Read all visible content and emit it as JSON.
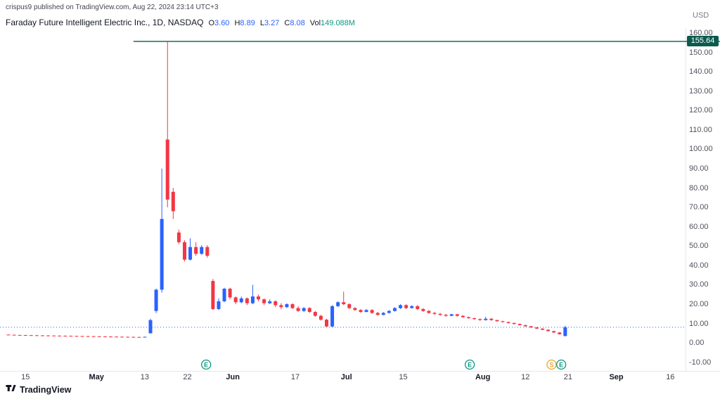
{
  "attribution": "crispus9 published on TradingView.com, Aug 22, 2024 23:14 UTC+3",
  "legend": {
    "symbol_title": "Faraday Future Intelligent Electric Inc., 1D, NASDAQ",
    "fields": [
      {
        "label": "O",
        "value": "3.60",
        "color": "#2962ff"
      },
      {
        "label": "H",
        "value": "8.89",
        "color": "#2962ff"
      },
      {
        "label": "L",
        "value": "3.27",
        "color": "#2962ff"
      },
      {
        "label": "C",
        "value": "8.08",
        "color": "#2962ff"
      },
      {
        "label": "Vol",
        "value": "149.088M",
        "color": "#089981"
      }
    ]
  },
  "price_axis": {
    "currency": "USD",
    "ticks": [
      160,
      150,
      140,
      130,
      120,
      110,
      100,
      90,
      80,
      70,
      60,
      50,
      40,
      30,
      20,
      10,
      0,
      -10
    ],
    "high_label": "155.64"
  },
  "time_axis": {
    "ticks": [
      {
        "label": "15",
        "i": 3,
        "major": false
      },
      {
        "label": "May",
        "i": 15.5,
        "major": true
      },
      {
        "label": "13",
        "i": 24,
        "major": false
      },
      {
        "label": "22",
        "i": 31.5,
        "major": false
      },
      {
        "label": "Jun",
        "i": 39.5,
        "major": true
      },
      {
        "label": "17",
        "i": 50.5,
        "major": false
      },
      {
        "label": "Jul",
        "i": 59.5,
        "major": true
      },
      {
        "label": "15",
        "i": 69.5,
        "major": false
      },
      {
        "label": "Aug",
        "i": 83.5,
        "major": true
      },
      {
        "label": "12",
        "i": 91,
        "major": false
      },
      {
        "label": "21",
        "i": 98.5,
        "major": false
      },
      {
        "label": "Sep",
        "i": 107,
        "major": true
      },
      {
        "label": "16",
        "i": 116.5,
        "major": false
      }
    ]
  },
  "watermark": "TradingView",
  "colors": {
    "up": "#2962ff",
    "down": "#f23645",
    "high_line": "#0b5a4e",
    "last_price_line": "#2962ff",
    "earnings": "#089981",
    "split": "#f0a42a",
    "axis_separator": "#e3e6ee"
  },
  "chart_data": {
    "type": "candlestick",
    "title": "Faraday Future Intelligent Electric Inc., 1D, NASDAQ",
    "ylabel": "USD",
    "ylim": [
      -10,
      160
    ],
    "grid": false,
    "hline": 155.64,
    "hline_start_index": 22,
    "last_price": 8.08,
    "candles_format": [
      "open",
      "high",
      "low",
      "close"
    ],
    "candles": [
      [
        4.3,
        4.4,
        4.1,
        4.2
      ],
      [
        4.2,
        4.3,
        4.0,
        4.1
      ],
      [
        4.1,
        4.25,
        3.95,
        4.05
      ],
      [
        4.05,
        4.2,
        3.9,
        4.0
      ],
      [
        4.0,
        4.15,
        3.85,
        3.95
      ],
      [
        3.95,
        4.1,
        3.8,
        3.9
      ],
      [
        3.9,
        4.05,
        3.75,
        3.85
      ],
      [
        3.85,
        4.0,
        3.7,
        3.8
      ],
      [
        3.8,
        3.95,
        3.65,
        3.75
      ],
      [
        3.75,
        3.9,
        3.6,
        3.7
      ],
      [
        3.7,
        3.85,
        3.55,
        3.65
      ],
      [
        3.65,
        3.8,
        3.5,
        3.6
      ],
      [
        3.6,
        3.75,
        3.45,
        3.55
      ],
      [
        3.55,
        3.7,
        3.4,
        3.5
      ],
      [
        3.5,
        3.65,
        3.35,
        3.45
      ],
      [
        3.45,
        3.6,
        3.3,
        3.4
      ],
      [
        3.4,
        3.55,
        3.25,
        3.35
      ],
      [
        3.35,
        3.5,
        3.2,
        3.3
      ],
      [
        3.3,
        3.45,
        3.15,
        3.25
      ],
      [
        3.25,
        3.4,
        3.1,
        3.2
      ],
      [
        3.2,
        3.35,
        3.05,
        3.15
      ],
      [
        3.15,
        3.3,
        3.0,
        3.1
      ],
      [
        3.1,
        3.25,
        2.95,
        3.05
      ],
      [
        3.05,
        3.2,
        2.9,
        3.0
      ],
      [
        3.0,
        3.3,
        2.85,
        3.15
      ],
      [
        5.0,
        12.5,
        4.8,
        11.8
      ],
      [
        16.5,
        28.0,
        15.5,
        27.5
      ],
      [
        27.5,
        90.0,
        26.0,
        64.0
      ],
      [
        105.0,
        155.64,
        70.0,
        74.0
      ],
      [
        78.0,
        80.0,
        64.0,
        68.0
      ],
      [
        57.0,
        58.5,
        51.0,
        52.0
      ],
      [
        52.0,
        53.0,
        42.0,
        43.0
      ],
      [
        43.0,
        54.0,
        42.5,
        49.5
      ],
      [
        49.5,
        52.0,
        45.0,
        46.0
      ],
      [
        46.0,
        50.5,
        45.5,
        49.5
      ],
      [
        49.5,
        50.5,
        44.0,
        45.0
      ],
      [
        32.0,
        33.0,
        17.0,
        17.5
      ],
      [
        17.5,
        23.0,
        17.0,
        21.5
      ],
      [
        21.5,
        28.5,
        21.0,
        28.0
      ],
      [
        28.0,
        28.5,
        22.5,
        23.5
      ],
      [
        23.5,
        24.0,
        20.0,
        21.0
      ],
      [
        21.0,
        24.0,
        20.5,
        23.0
      ],
      [
        23.0,
        23.5,
        19.5,
        20.5
      ],
      [
        20.5,
        30.0,
        20.0,
        24.0
      ],
      [
        24.0,
        25.0,
        21.5,
        22.5
      ],
      [
        22.5,
        23.0,
        19.5,
        20.5
      ],
      [
        20.5,
        22.5,
        20.0,
        21.5
      ],
      [
        21.5,
        22.0,
        18.5,
        19.5
      ],
      [
        19.5,
        20.5,
        17.5,
        18.5
      ],
      [
        18.5,
        20.5,
        18.0,
        20.0
      ],
      [
        20.0,
        20.5,
        17.5,
        18.0
      ],
      [
        18.0,
        19.0,
        16.0,
        16.5
      ],
      [
        16.5,
        18.5,
        16.0,
        18.0
      ],
      [
        18.0,
        18.5,
        15.5,
        16.0
      ],
      [
        16.0,
        16.5,
        13.5,
        14.0
      ],
      [
        14.0,
        14.5,
        11.5,
        12.0
      ],
      [
        12.0,
        12.5,
        8.0,
        8.5
      ],
      [
        8.5,
        19.5,
        8.2,
        19.0
      ],
      [
        19.0,
        21.5,
        18.5,
        21.0
      ],
      [
        21.0,
        26.5,
        19.5,
        20.0
      ],
      [
        20.0,
        20.5,
        17.5,
        18.0
      ],
      [
        18.0,
        18.5,
        16.5,
        17.0
      ],
      [
        17.0,
        17.5,
        15.5,
        16.0
      ],
      [
        16.0,
        17.5,
        15.8,
        17.0
      ],
      [
        17.0,
        17.4,
        15.0,
        15.5
      ],
      [
        15.5,
        16.0,
        14.0,
        14.5
      ],
      [
        14.5,
        16.0,
        14.2,
        15.5
      ],
      [
        15.5,
        17.0,
        15.2,
        16.5
      ],
      [
        16.5,
        18.5,
        16.2,
        18.0
      ],
      [
        18.0,
        20.0,
        17.5,
        19.5
      ],
      [
        19.5,
        20.0,
        17.5,
        18.0
      ],
      [
        18.0,
        19.5,
        17.8,
        19.0
      ],
      [
        19.0,
        19.5,
        17.0,
        17.5
      ],
      [
        17.5,
        18.0,
        16.0,
        16.5
      ],
      [
        16.5,
        17.0,
        15.0,
        15.5
      ],
      [
        15.5,
        16.0,
        14.5,
        15.0
      ],
      [
        15.0,
        15.5,
        14.0,
        14.5
      ],
      [
        14.5,
        15.0,
        13.5,
        14.0
      ],
      [
        14.0,
        15.0,
        13.8,
        14.8
      ],
      [
        14.8,
        15.0,
        13.5,
        14.0
      ],
      [
        14.0,
        14.3,
        13.0,
        13.3
      ],
      [
        13.3,
        13.6,
        12.5,
        12.8
      ],
      [
        12.8,
        13.0,
        12.0,
        12.3
      ],
      [
        12.3,
        12.6,
        11.5,
        11.8
      ],
      [
        11.8,
        13.5,
        11.5,
        12.5
      ],
      [
        12.5,
        12.8,
        11.5,
        11.8
      ],
      [
        11.8,
        12.0,
        11.0,
        11.2
      ],
      [
        11.2,
        11.5,
        10.5,
        10.8
      ],
      [
        10.8,
        11.0,
        10.0,
        10.3
      ],
      [
        10.3,
        10.5,
        9.5,
        9.8
      ],
      [
        9.8,
        10.0,
        9.0,
        9.2
      ],
      [
        9.2,
        9.4,
        8.4,
        8.6
      ],
      [
        8.6,
        8.8,
        7.8,
        8.0
      ],
      [
        8.0,
        8.2,
        7.2,
        7.4
      ],
      [
        7.4,
        7.6,
        6.6,
        6.8
      ],
      [
        6.8,
        7.0,
        5.9,
        6.1
      ],
      [
        6.1,
        6.3,
        5.2,
        5.4
      ],
      [
        5.4,
        5.6,
        4.3,
        4.5
      ],
      [
        3.6,
        8.89,
        3.27,
        8.08
      ]
    ],
    "events": [
      {
        "type": "earnings",
        "label": "E",
        "i": 34.8
      },
      {
        "type": "earnings",
        "label": "E",
        "i": 81.2
      },
      {
        "type": "split",
        "label": "S",
        "i": 95.6
      },
      {
        "type": "earnings",
        "label": "E",
        "i": 97.3
      }
    ]
  }
}
